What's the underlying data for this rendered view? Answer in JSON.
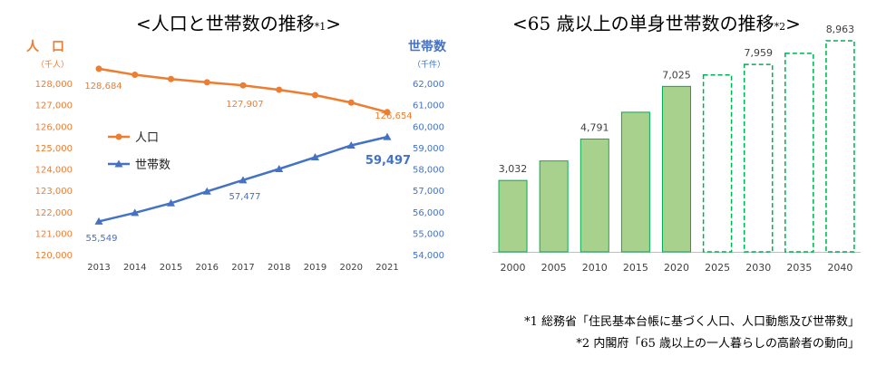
{
  "titles": {
    "left": "<人口と世帯数の推移",
    "left_mark": "*1",
    "left_close": ">",
    "right": "<65 歳以上の単身世帯数の推移",
    "right_mark": "*2",
    "right_close": ">"
  },
  "footnotes": {
    "f1": "*1  総務省「住民基本台帳に基づく人口、人口動態及び世帯数」",
    "f2": "*2 内閣府「65 歳以上の一人暮らしの高齢者の動向」"
  },
  "colors": {
    "population": "#ed7d31",
    "households": "#4472c4",
    "bar_fill": "#a9d18e",
    "bar_stroke": "#00b050",
    "projection_stroke": "#00b050",
    "axis_text": "#595959"
  },
  "chart_data": [
    {
      "type": "line",
      "title": "<人口と世帯数の推移*1>",
      "x": [
        "2013",
        "2014",
        "2015",
        "2016",
        "2017",
        "2018",
        "2019",
        "2020",
        "2021"
      ],
      "left_axis": {
        "label": "人　口",
        "unit": "（千人）",
        "ylim": [
          120000,
          128000
        ],
        "ticks": [
          "120,000",
          "121,000",
          "122,000",
          "123,000",
          "124,000",
          "125,000",
          "126,000",
          "127,000",
          "128,000"
        ]
      },
      "right_axis": {
        "label": "世帯数",
        "unit": "（千件）",
        "ylim": [
          54000,
          62000
        ],
        "ticks": [
          "54,000",
          "55,000",
          "56,000",
          "57,000",
          "58,000",
          "59,000",
          "60,000",
          "61,000",
          "62,000"
        ]
      },
      "legend": [
        "人口",
        "世帯数"
      ],
      "legend_position": "center-left",
      "series": [
        {
          "name": "人口",
          "axis": "left",
          "values": [
            128684,
            128400,
            128200,
            128050,
            127907,
            127700,
            127450,
            127100,
            126654
          ],
          "labels": [
            {
              "index": 0,
              "text": "128,684"
            },
            {
              "index": 4,
              "text": "127,907"
            },
            {
              "index": 8,
              "text": "126,654"
            }
          ]
        },
        {
          "name": "世帯数",
          "axis": "right",
          "values": [
            55549,
            55950,
            56400,
            56950,
            57477,
            58000,
            58550,
            59100,
            59497
          ],
          "labels": [
            {
              "index": 0,
              "text": "55,549"
            },
            {
              "index": 4,
              "text": "57,477"
            },
            {
              "index": 8,
              "text": "59,497"
            }
          ]
        }
      ]
    },
    {
      "type": "bar",
      "title": "<65 歳以上の単身世帯数の推移*2>",
      "categories": [
        "2000",
        "2005",
        "2010",
        "2015",
        "2020",
        "2025",
        "2030",
        "2035",
        "2040"
      ],
      "values": [
        3032,
        3860,
        4791,
        5928,
        7025,
        7510,
        7959,
        8430,
        8963
      ],
      "projected_from_index": 5,
      "labels": [
        {
          "index": 0,
          "text": "3,032"
        },
        {
          "index": 2,
          "text": "4,791"
        },
        {
          "index": 4,
          "text": "7,025"
        },
        {
          "index": 6,
          "text": "7,959"
        },
        {
          "index": 8,
          "text": "8,963"
        }
      ],
      "ylim": [
        0,
        9000
      ]
    }
  ]
}
